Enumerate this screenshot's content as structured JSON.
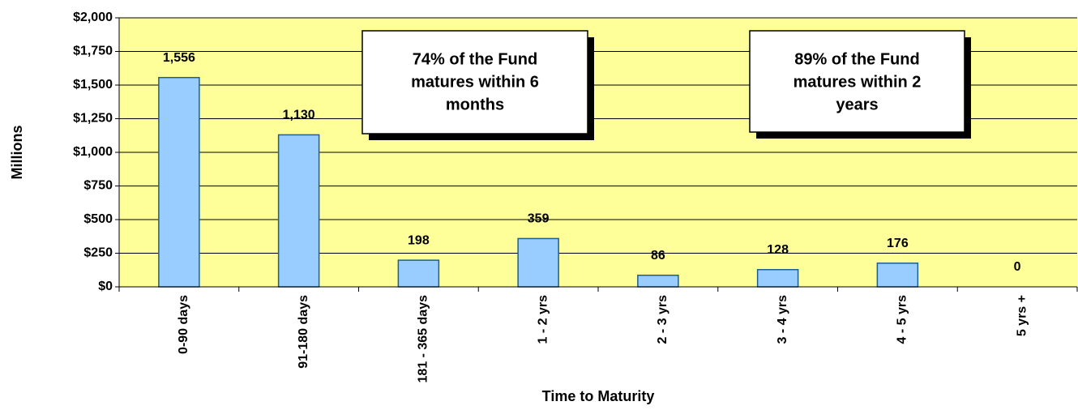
{
  "chart_data": {
    "type": "bar",
    "y_label": "Millions",
    "x_label": "Time to Maturity",
    "categories": [
      "0-90 days",
      "91-180 days",
      "181 - 365 days",
      "1 - 2 yrs",
      "2 - 3 yrs",
      "3 - 4 yrs",
      "4 - 5 yrs",
      "5 yrs +"
    ],
    "values": [
      1556,
      1130,
      198,
      359,
      86,
      128,
      176,
      0
    ],
    "value_labels": [
      "1,556",
      "1,130",
      "198",
      "359",
      "86",
      "128",
      "176",
      "0"
    ],
    "color": "#99ccff",
    "ylim": [
      0,
      2000
    ],
    "yticks": [
      {
        "value": 0,
        "label": "$0"
      },
      {
        "value": 250,
        "label": "$250"
      },
      {
        "value": 500,
        "label": "$500"
      },
      {
        "value": 750,
        "label": "$750"
      },
      {
        "value": 1000,
        "label": "$1,000"
      },
      {
        "value": 1250,
        "label": "$1,250"
      },
      {
        "value": 1500,
        "label": "$1,500"
      },
      {
        "value": 1750,
        "label": "$1,750"
      },
      {
        "value": 2000,
        "label": "$2,000"
      }
    ],
    "grid": true,
    "annotations": [
      {
        "lines": [
          "74% of the Fund",
          "matures within 6",
          "months"
        ]
      },
      {
        "lines": [
          "89% of the Fund",
          "matures within 2",
          "years"
        ]
      }
    ]
  }
}
